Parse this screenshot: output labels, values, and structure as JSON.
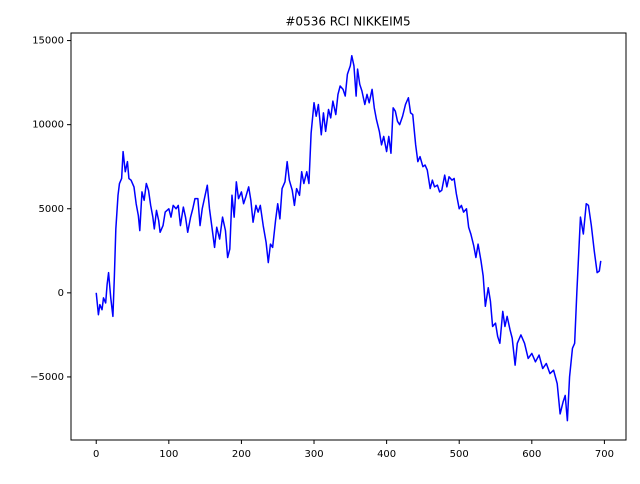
{
  "chart_data": {
    "type": "line",
    "title": "#0536 RCI NIKKEIM5",
    "x": [
      0,
      3,
      5,
      8,
      10,
      13,
      15,
      17,
      20,
      23,
      25,
      27,
      30,
      32,
      35,
      37,
      40,
      43,
      45,
      48,
      52,
      55,
      58,
      60,
      63,
      66,
      69,
      72,
      75,
      78,
      80,
      83,
      86,
      88,
      92,
      95,
      100,
      103,
      106,
      110,
      113,
      116,
      120,
      123,
      126,
      130,
      133,
      136,
      140,
      143,
      146,
      150,
      153,
      156,
      160,
      163,
      166,
      170,
      174,
      178,
      181,
      184,
      187,
      190,
      193,
      196,
      200,
      203,
      206,
      210,
      213,
      216,
      220,
      223,
      226,
      230,
      234,
      237,
      240,
      243,
      247,
      250,
      253,
      256,
      260,
      263,
      266,
      270,
      273,
      276,
      280,
      283,
      286,
      290,
      293,
      296,
      300,
      303,
      306,
      310,
      313,
      316,
      320,
      323,
      326,
      330,
      333,
      336,
      340,
      343,
      346,
      350,
      352,
      355,
      358,
      360,
      363,
      366,
      370,
      373,
      376,
      380,
      383,
      386,
      390,
      393,
      396,
      400,
      403,
      406,
      409,
      412,
      415,
      418,
      422,
      426,
      430,
      433,
      436,
      440,
      443,
      446,
      450,
      453,
      456,
      460,
      463,
      466,
      470,
      473,
      476,
      480,
      483,
      486,
      490,
      493,
      496,
      500,
      503,
      506,
      510,
      513,
      516,
      520,
      523,
      526,
      530,
      533,
      536,
      540,
      543,
      546,
      550,
      553,
      556,
      560,
      563,
      566,
      570,
      573,
      577,
      580,
      585,
      590,
      595,
      600,
      605,
      610,
      615,
      620,
      625,
      630,
      635,
      639,
      643,
      646,
      649,
      652,
      656,
      659,
      662,
      664,
      667,
      671,
      675,
      678,
      682,
      686,
      690,
      693,
      695
    ],
    "series": [
      {
        "name": "RCI",
        "color": "#0000ff",
        "values": [
          0,
          -1300,
          -700,
          -1000,
          -300,
          -600,
          500,
          1200,
          -300,
          -1400,
          1000,
          3800,
          5800,
          6500,
          6800,
          8400,
          7200,
          7800,
          6800,
          6700,
          6300,
          5300,
          4600,
          3700,
          6000,
          5500,
          6500,
          6100,
          5200,
          4500,
          3800,
          4900,
          4300,
          3600,
          4000,
          4800,
          5000,
          4500,
          5200,
          5000,
          5200,
          4000,
          5100,
          4500,
          3600,
          4500,
          5000,
          5600,
          5600,
          4000,
          5000,
          5800,
          6400,
          5000,
          3700,
          2700,
          3900,
          3200,
          4500,
          3700,
          2100,
          2600,
          5800,
          4500,
          6600,
          5600,
          6000,
          5300,
          5700,
          6300,
          5500,
          4200,
          5200,
          4800,
          5200,
          4000,
          3000,
          1800,
          2900,
          2700,
          4300,
          5300,
          4400,
          6200,
          6600,
          7800,
          6700,
          6100,
          5200,
          6200,
          5800,
          7200,
          6500,
          7200,
          6500,
          9500,
          11300,
          10500,
          11200,
          9400,
          10700,
          9600,
          10900,
          10400,
          11400,
          10600,
          11800,
          12300,
          12100,
          11700,
          13000,
          13500,
          14100,
          13500,
          11700,
          13300,
          12400,
          12000,
          11200,
          11800,
          11300,
          12100,
          11000,
          10300,
          9600,
          8800,
          9300,
          8400,
          9300,
          8300,
          11000,
          10800,
          10200,
          10000,
          10500,
          11200,
          11600,
          10700,
          10600,
          8800,
          7800,
          8100,
          7500,
          7600,
          7300,
          6200,
          6700,
          6300,
          6400,
          6000,
          6100,
          7000,
          6300,
          6900,
          6700,
          6800,
          5900,
          5000,
          5200,
          4800,
          5000,
          3900,
          3500,
          2800,
          2100,
          2900,
          1900,
          1000,
          -800,
          300,
          -500,
          -2000,
          -1800,
          -2600,
          -3000,
          -1100,
          -2000,
          -1400,
          -2200,
          -2700,
          -4300,
          -3000,
          -2500,
          -3000,
          -3900,
          -3600,
          -4100,
          -3700,
          -4500,
          -4200,
          -4800,
          -4600,
          -5400,
          -7200,
          -6500,
          -6100,
          -7600,
          -5000,
          -3300,
          -3000,
          0,
          1800,
          4500,
          3500,
          5300,
          5200,
          4000,
          2500,
          1200,
          1300,
          1900
        ]
      }
    ],
    "xlim": [
      -34.75,
      729.75
    ],
    "ylim": [
      -8750,
      15450
    ],
    "xticks": [
      0,
      100,
      200,
      300,
      400,
      500,
      600,
      700
    ],
    "yticks": [
      {
        "value": -5000,
        "label": "−5000"
      },
      0,
      5000,
      10000,
      15000
    ]
  }
}
